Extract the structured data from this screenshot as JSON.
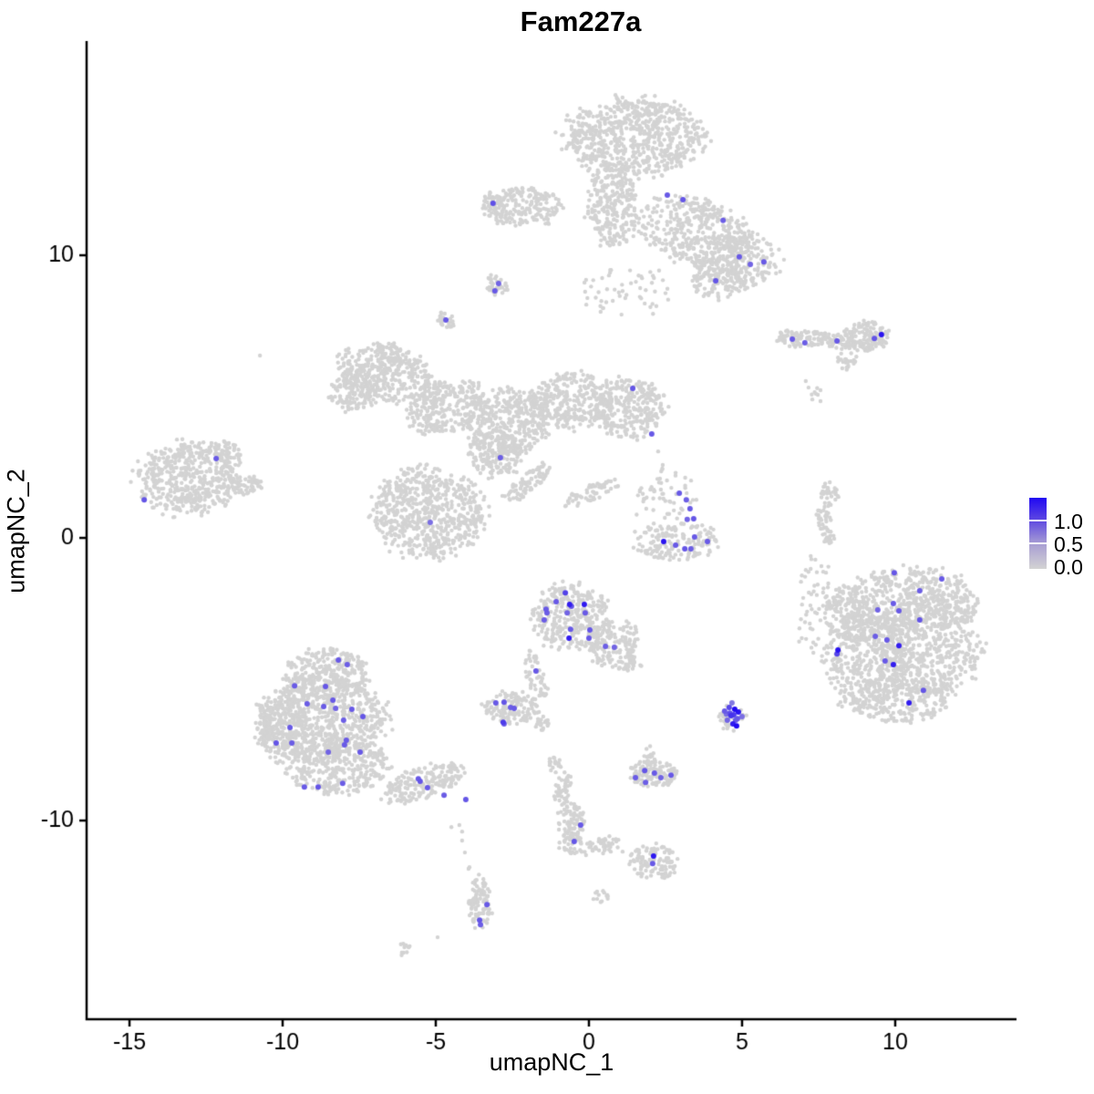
{
  "title": "Fam227a",
  "chart_data": {
    "type": "scatter",
    "title": "Fam227a",
    "xlabel": "umapNC_1",
    "ylabel": "umapNC_2",
    "xlim": [
      -16.4,
      13.96
    ],
    "ylim": [
      -17.03,
      17.58
    ],
    "x_ticks": [
      -15,
      -10,
      -5,
      0,
      5,
      10
    ],
    "y_ticks": [
      -10,
      0,
      10
    ],
    "grid": false,
    "legend": {
      "position": "right",
      "labels": [
        "1.0",
        "0.5",
        "0.0"
      ],
      "tick_values": [
        1.0,
        0.5,
        0.0
      ],
      "gradient_stops": [
        [
          0,
          "#2008f2"
        ],
        [
          0.3,
          "#5b45e2"
        ],
        [
          0.65,
          "#a89ed3"
        ],
        [
          1,
          "#d3d3d3"
        ]
      ]
    },
    "colors": {
      "low": "#d3d3d3",
      "high": "#2008f2",
      "background": "#ffffff",
      "axis": "#000000"
    },
    "point_radius_px": {
      "background": 2.2,
      "expressing": 3.0
    },
    "background_clusters": [
      {
        "name": "top-mushroom",
        "blobs": [
          [
            1.46,
            14.19,
            2.23,
            1.35,
            0,
            700
          ],
          [
            0.77,
            11.77,
            0.83,
            1.45,
            0,
            260
          ],
          [
            -2.11,
            11.68,
            1.19,
            0.71,
            0,
            180
          ],
          [
            -3.13,
            11.87,
            0.36,
            0.45,
            0,
            40
          ],
          [
            3.54,
            10.81,
            1.93,
            1.13,
            -20,
            420
          ],
          [
            4.88,
            9.84,
            1.34,
            0.9,
            0,
            220
          ],
          [
            4.29,
            9.03,
            0.89,
            0.58,
            0,
            110
          ],
          [
            1.31,
            8.71,
            1.49,
            0.97,
            0,
            55
          ]
        ]
      },
      {
        "name": "small-blob-upper-left",
        "blobs": [
          [
            -3.01,
            8.87,
            0.38,
            0.42,
            0,
            35
          ]
        ]
      },
      {
        "name": "tiny-blob-left",
        "blobs": [
          [
            -4.67,
            7.68,
            0.3,
            0.3,
            0,
            25
          ]
        ]
      },
      {
        "name": "right-archipelago",
        "blobs": [
          [
            6.96,
            7.06,
            0.95,
            0.29,
            0,
            90
          ],
          [
            8.15,
            6.97,
            0.54,
            0.26,
            0,
            45
          ],
          [
            9.05,
            7.1,
            0.77,
            0.55,
            0,
            130
          ],
          [
            8.42,
            6.26,
            0.36,
            0.29,
            45,
            25
          ],
          [
            7.41,
            5.13,
            0.3,
            0.3,
            0,
            6
          ]
        ]
      },
      {
        "name": "central-butterfly",
        "blobs": [
          [
            -6.58,
            5.81,
            1.64,
            0.97,
            -15,
            380
          ],
          [
            -7.68,
            5.1,
            0.74,
            0.65,
            0,
            120
          ],
          [
            -6.49,
            6.39,
            0.36,
            0.68,
            25,
            40
          ],
          [
            -4.64,
            4.61,
            1.34,
            0.81,
            20,
            260
          ],
          [
            -2.71,
            4.13,
            1.34,
            1.13,
            0,
            380
          ],
          [
            -0.48,
            4.84,
            1.34,
            0.97,
            0,
            300
          ],
          [
            1.31,
            4.61,
            1.19,
            1.03,
            0,
            280
          ],
          [
            -3.01,
            3.0,
            0.89,
            0.81,
            0,
            180
          ],
          [
            -5.24,
            0.9,
            1.79,
            1.55,
            0,
            650
          ],
          [
            -2.05,
            1.9,
            1.04,
            0.32,
            40,
            80
          ],
          [
            0.12,
            1.61,
            1.13,
            0.26,
            25,
            60
          ]
        ]
      },
      {
        "name": "left-fish",
        "blobs": [
          [
            -13.13,
            2.1,
            1.64,
            1.23,
            0,
            480
          ],
          [
            -11.37,
            1.87,
            0.65,
            0.32,
            0,
            60
          ],
          [
            -11.88,
            3.0,
            0.6,
            0.42,
            -35,
            60
          ]
        ]
      },
      {
        "name": "right-sliver",
        "blobs": [
          [
            7.86,
            1.58,
            0.3,
            0.39,
            0,
            30
          ],
          [
            7.65,
            0.77,
            0.24,
            0.45,
            0,
            30
          ],
          [
            7.83,
            0.03,
            0.21,
            0.32,
            0,
            20
          ]
        ]
      },
      {
        "name": "mid-right-boat",
        "blobs": [
          [
            2.41,
            1.45,
            0.98,
            0.97,
            0,
            55
          ],
          [
            2.86,
            -0.1,
            1.43,
            0.65,
            0,
            160
          ]
        ]
      },
      {
        "name": "big-right",
        "blobs": [
          [
            10.54,
            -2.26,
            2.08,
            1.23,
            0,
            500
          ],
          [
            11.13,
            -3.87,
            1.64,
            1.77,
            0,
            500
          ],
          [
            9.05,
            -4.26,
            1.34,
            1.61,
            0,
            400
          ],
          [
            8.51,
            -2.65,
            0.83,
            0.97,
            0,
            160
          ],
          [
            10.09,
            -5.71,
            1.79,
            0.81,
            0,
            260
          ],
          [
            7.41,
            -1.71,
            0.54,
            1.13,
            0,
            30
          ],
          [
            7.17,
            -3.39,
            0.36,
            0.81,
            0,
            18
          ]
        ]
      },
      {
        "name": "center-stingray",
        "blobs": [
          [
            -0.63,
            -2.81,
            1.25,
            1.13,
            0,
            330
          ],
          [
            0.8,
            -3.74,
            0.83,
            0.71,
            40,
            140
          ],
          [
            1.37,
            -4.52,
            0.36,
            0.32,
            0,
            30
          ],
          [
            -1.73,
            -4.9,
            0.3,
            0.9,
            15,
            50
          ]
        ]
      },
      {
        "name": "small-center-left",
        "blobs": [
          [
            -2.56,
            -6.0,
            0.89,
            0.58,
            0,
            130
          ],
          [
            -1.52,
            -6.58,
            0.24,
            0.32,
            0,
            18
          ]
        ]
      },
      {
        "name": "bottom-left-boot",
        "blobs": [
          [
            -8.51,
            -4.84,
            1.34,
            0.9,
            0,
            300
          ],
          [
            -8.66,
            -6.45,
            2.08,
            1.45,
            0,
            650
          ],
          [
            -10.0,
            -6.77,
            0.89,
            1.13,
            0,
            220
          ],
          [
            -8.21,
            -8.06,
            1.64,
            0.97,
            0,
            350
          ],
          [
            -5.39,
            -8.65,
            1.43,
            0.52,
            20,
            180
          ]
        ]
      },
      {
        "name": "hotspot-halo",
        "blobs": [
          [
            4.67,
            -6.32,
            0.45,
            0.48,
            0,
            25
          ]
        ]
      },
      {
        "name": "small-bottom-center",
        "blobs": [
          [
            2.08,
            -8.32,
            0.77,
            0.52,
            0,
            120
          ],
          [
            1.96,
            -7.74,
            0.21,
            0.39,
            0,
            18
          ]
        ]
      },
      {
        "name": "bottom-y-strand",
        "blobs": [
          [
            -1.1,
            -8.0,
            0.24,
            0.32,
            0,
            20
          ],
          [
            -0.86,
            -8.97,
            0.24,
            0.71,
            -10,
            45
          ],
          [
            -0.54,
            -10.0,
            0.42,
            0.58,
            0,
            70
          ],
          [
            -0.57,
            -10.81,
            0.39,
            0.39,
            0,
            40
          ],
          [
            0.42,
            -10.9,
            0.65,
            0.29,
            15,
            45
          ]
        ]
      },
      {
        "name": "bottom-right-blob",
        "blobs": [
          [
            2.14,
            -11.45,
            0.77,
            0.58,
            0,
            110
          ]
        ]
      },
      {
        "name": "bottom-comma",
        "blobs": [
          [
            -3.54,
            -12.9,
            0.36,
            0.9,
            0,
            90
          ]
        ]
      },
      {
        "name": "tiny-bottom-diagonal",
        "blobs": [
          [
            -6.07,
            -14.55,
            0.3,
            0.19,
            30,
            12
          ]
        ]
      },
      {
        "name": "tiny-bottom-right",
        "blobs": [
          [
            0.36,
            -12.68,
            0.27,
            0.23,
            0,
            14
          ]
        ]
      }
    ],
    "isolated_points": [
      [
        -10.74,
        6.45
      ],
      [
        7.17,
        5.32
      ],
      [
        7.41,
        5.1
      ],
      [
        7.56,
        4.84
      ],
      [
        7.08,
        5.55
      ],
      [
        2.26,
        3.06
      ],
      [
        2.41,
        2.58
      ],
      [
        2.32,
        2.1
      ],
      [
        7.59,
        -1.0
      ],
      [
        7.74,
        -1.23
      ],
      [
        4.29,
        -6.23
      ],
      [
        4.38,
        -6.32
      ],
      [
        -0.98,
        -10.32
      ],
      [
        -4.49,
        -10.23
      ],
      [
        -4.23,
        -10.16
      ],
      [
        -4.14,
        -10.39
      ],
      [
        -4.14,
        -10.71
      ],
      [
        -4.05,
        -11.13
      ],
      [
        -3.9,
        -11.65
      ],
      [
        -3.93,
        -11.71
      ],
      [
        -4.94,
        -14.13
      ],
      [
        1.1,
        -11.1
      ],
      [
        1.37,
        -11.23
      ]
    ],
    "expressing_cells": [
      [
        2.56,
        12.13,
        0.6
      ],
      [
        3.07,
        11.97,
        0.62
      ],
      [
        4.38,
        11.23,
        0.58
      ],
      [
        4.91,
        9.94,
        0.6
      ],
      [
        5.27,
        9.68,
        0.55
      ],
      [
        5.71,
        9.77,
        0.6
      ],
      [
        4.14,
        9.1,
        0.62
      ],
      [
        -3.13,
        11.84,
        0.65
      ],
      [
        -2.95,
        9.0,
        0.55
      ],
      [
        -3.07,
        8.74,
        0.6
      ],
      [
        -4.67,
        7.71,
        0.6
      ],
      [
        6.64,
        7.03,
        0.6
      ],
      [
        7.05,
        6.9,
        0.58
      ],
      [
        8.1,
        6.97,
        0.6
      ],
      [
        9.32,
        7.06,
        0.62
      ],
      [
        9.55,
        7.19,
        0.95
      ],
      [
        1.43,
        5.29,
        0.62
      ],
      [
        2.05,
        3.68,
        0.6
      ],
      [
        -2.89,
        2.84,
        0.58
      ],
      [
        -5.18,
        0.55,
        0.5
      ],
      [
        -12.17,
        2.81,
        0.6
      ],
      [
        -14.52,
        1.35,
        0.62
      ],
      [
        2.95,
        1.58,
        0.6
      ],
      [
        3.18,
        1.35,
        0.58
      ],
      [
        3.3,
        1.03,
        0.6
      ],
      [
        3.42,
        0.68,
        0.62
      ],
      [
        3.21,
        0.65,
        0.55
      ],
      [
        3.45,
        0.03,
        0.6
      ],
      [
        2.44,
        -0.13,
        0.95
      ],
      [
        2.83,
        -0.26,
        0.6
      ],
      [
        3.13,
        -0.39,
        0.62
      ],
      [
        3.33,
        -0.39,
        0.58
      ],
      [
        3.87,
        -0.13,
        0.6
      ],
      [
        9.97,
        -1.23,
        0.62
      ],
      [
        11.52,
        -1.45,
        0.6
      ],
      [
        10.8,
        -1.87,
        0.58
      ],
      [
        9.94,
        -2.32,
        0.6
      ],
      [
        9.43,
        -2.55,
        0.55
      ],
      [
        10.12,
        -2.58,
        0.6
      ],
      [
        10.8,
        -2.9,
        0.62
      ],
      [
        9.35,
        -3.48,
        0.58
      ],
      [
        9.73,
        -3.61,
        0.6
      ],
      [
        10.12,
        -3.81,
        0.9
      ],
      [
        8.13,
        -3.97,
        0.95
      ],
      [
        8.1,
        -4.1,
        0.7
      ],
      [
        9.67,
        -4.35,
        0.6
      ],
      [
        9.94,
        -4.48,
        0.9
      ],
      [
        10.92,
        -5.39,
        0.62
      ],
      [
        10.45,
        -5.84,
        0.9
      ],
      [
        -0.77,
        -1.94,
        0.72
      ],
      [
        -1.07,
        -2.26,
        0.6
      ],
      [
        -0.63,
        -2.35,
        0.9
      ],
      [
        -0.57,
        -2.42,
        0.62
      ],
      [
        -0.15,
        -2.35,
        0.92
      ],
      [
        -1.4,
        -2.52,
        0.6
      ],
      [
        -1.37,
        -2.65,
        0.58
      ],
      [
        -0.71,
        -2.65,
        0.55
      ],
      [
        -0.12,
        -2.65,
        0.6
      ],
      [
        -1.46,
        -2.9,
        0.58
      ],
      [
        -0.6,
        -3.23,
        0.6
      ],
      [
        0.03,
        -3.26,
        0.62
      ],
      [
        -0.65,
        -3.55,
        0.9
      ],
      [
        0.0,
        -3.55,
        0.6
      ],
      [
        0.54,
        -3.84,
        0.58
      ],
      [
        0.83,
        -3.87,
        0.55
      ],
      [
        -1.73,
        -4.71,
        0.6
      ],
      [
        -3.04,
        -5.84,
        0.6
      ],
      [
        -2.77,
        -5.81,
        0.62
      ],
      [
        -2.56,
        -6.0,
        0.58
      ],
      [
        -2.44,
        -6.03,
        0.6
      ],
      [
        -2.8,
        -6.52,
        0.75
      ],
      [
        -2.77,
        -6.58,
        0.6
      ],
      [
        -8.18,
        -4.32,
        0.6
      ],
      [
        -7.89,
        -4.48,
        0.58
      ],
      [
        -9.61,
        -5.23,
        0.6
      ],
      [
        -8.6,
        -5.26,
        0.62
      ],
      [
        -8.36,
        -5.74,
        0.6
      ],
      [
        -9.2,
        -5.87,
        0.58
      ],
      [
        -8.66,
        -5.97,
        0.6
      ],
      [
        -8.27,
        -6.03,
        0.55
      ],
      [
        -7.74,
        -6.06,
        0.6
      ],
      [
        -7.38,
        -6.32,
        0.62
      ],
      [
        -8.01,
        -6.45,
        0.58
      ],
      [
        -9.76,
        -6.71,
        0.6
      ],
      [
        -7.92,
        -7.16,
        0.6
      ],
      [
        -10.21,
        -7.26,
        0.62
      ],
      [
        -9.7,
        -7.26,
        0.58
      ],
      [
        -7.98,
        -7.32,
        0.6
      ],
      [
        -8.51,
        -7.58,
        0.55
      ],
      [
        -7.47,
        -7.58,
        0.6
      ],
      [
        -9.29,
        -8.81,
        0.6
      ],
      [
        -8.84,
        -8.81,
        0.62
      ],
      [
        -8.04,
        -8.68,
        0.58
      ],
      [
        -5.57,
        -8.52,
        0.6
      ],
      [
        -5.51,
        -8.61,
        0.62
      ],
      [
        -5.27,
        -8.84,
        0.6
      ],
      [
        -4.73,
        -9.1,
        0.58
      ],
      [
        -4.02,
        -9.26,
        0.62
      ],
      [
        4.43,
        -6.13,
        0.6
      ],
      [
        4.58,
        -6.0,
        0.7
      ],
      [
        4.76,
        -6.06,
        1.0
      ],
      [
        4.88,
        -6.16,
        0.95
      ],
      [
        4.64,
        -6.29,
        0.8
      ],
      [
        4.85,
        -6.39,
        0.6
      ],
      [
        4.52,
        -6.45,
        0.55
      ],
      [
        4.7,
        -6.58,
        0.9
      ],
      [
        4.82,
        -6.65,
        1.0
      ],
      [
        5.0,
        -6.32,
        0.5
      ],
      [
        4.49,
        -6.23,
        0.5
      ],
      [
        4.67,
        -5.84,
        0.45
      ],
      [
        4.6,
        -6.2,
        0.65
      ],
      [
        4.73,
        -6.26,
        0.75
      ],
      [
        4.79,
        -6.45,
        0.6
      ],
      [
        1.52,
        -8.48,
        0.6
      ],
      [
        1.82,
        -8.23,
        0.62
      ],
      [
        1.85,
        -8.65,
        0.58
      ],
      [
        2.14,
        -8.32,
        0.6
      ],
      [
        2.35,
        -8.48,
        0.55
      ],
      [
        2.68,
        -8.39,
        0.6
      ],
      [
        -0.27,
        -10.16,
        0.6
      ],
      [
        -0.48,
        -10.74,
        0.62
      ],
      [
        2.11,
        -11.26,
        0.92
      ],
      [
        2.08,
        -11.52,
        0.6
      ],
      [
        -3.33,
        -12.97,
        0.6
      ],
      [
        -3.57,
        -13.52,
        0.62
      ],
      [
        -3.54,
        -13.68,
        0.58
      ]
    ]
  }
}
